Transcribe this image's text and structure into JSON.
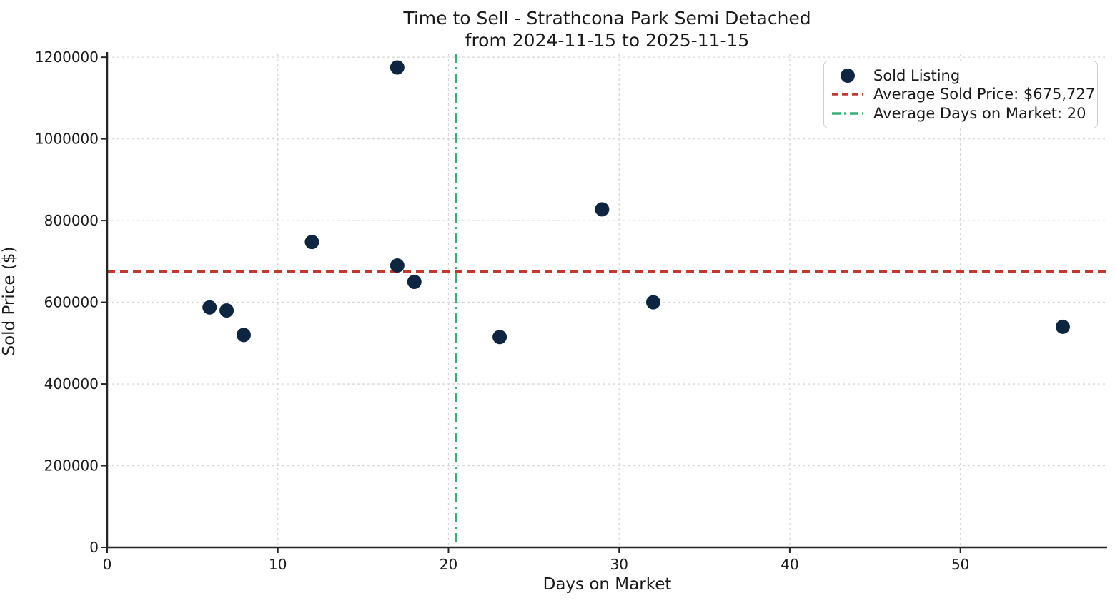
{
  "title": {
    "line1": "Time to Sell - Strathcona Park Semi Detached",
    "line2": "from 2024-11-15 to 2025-11-15"
  },
  "chart_data": {
    "type": "scatter",
    "title": "Time to Sell - Strathcona Park Semi Detached from 2024-11-15 to 2025-11-15",
    "xlabel": "Days on Market",
    "ylabel": "Sold Price ($)",
    "xlim": [
      0,
      58.6
    ],
    "ylim": [
      0,
      1209000
    ],
    "x_ticks": [
      0,
      10,
      20,
      30,
      40,
      50
    ],
    "y_ticks": [
      0,
      200000,
      400000,
      600000,
      800000,
      1000000,
      1200000
    ],
    "grid": true,
    "legend_position": "upper right",
    "series_label": "Sold Listing",
    "points": [
      {
        "days_on_market": 6,
        "sold_price": 587500
      },
      {
        "days_on_market": 7,
        "sold_price": 580000
      },
      {
        "days_on_market": 8,
        "sold_price": 520000
      },
      {
        "days_on_market": 12,
        "sold_price": 747500
      },
      {
        "days_on_market": 17,
        "sold_price": 1175000
      },
      {
        "days_on_market": 17,
        "sold_price": 690000
      },
      {
        "days_on_market": 18,
        "sold_price": 650000
      },
      {
        "days_on_market": 23,
        "sold_price": 515000
      },
      {
        "days_on_market": 29,
        "sold_price": 827500
      },
      {
        "days_on_market": 32,
        "sold_price": 600000
      },
      {
        "days_on_market": 56,
        "sold_price": 540000
      }
    ],
    "average_sold_price": 675727,
    "average_days_on_market": 20.45
  },
  "legend": {
    "items": [
      {
        "label": "Sold Listing",
        "marker": "dot"
      },
      {
        "label": "Average Sold Price: $675,727",
        "marker": "dashed-line"
      },
      {
        "label": "Average Days on Market: 20",
        "marker": "dashdot-line"
      }
    ]
  },
  "colors": {
    "point": "#0e2542",
    "avg_price_line": "#c0392b",
    "avg_days_line": "#33b273",
    "grid": "#d6d6d6",
    "spine": "#262626",
    "text": "#1a1a1a",
    "legend_border": "#cfcfcf"
  }
}
